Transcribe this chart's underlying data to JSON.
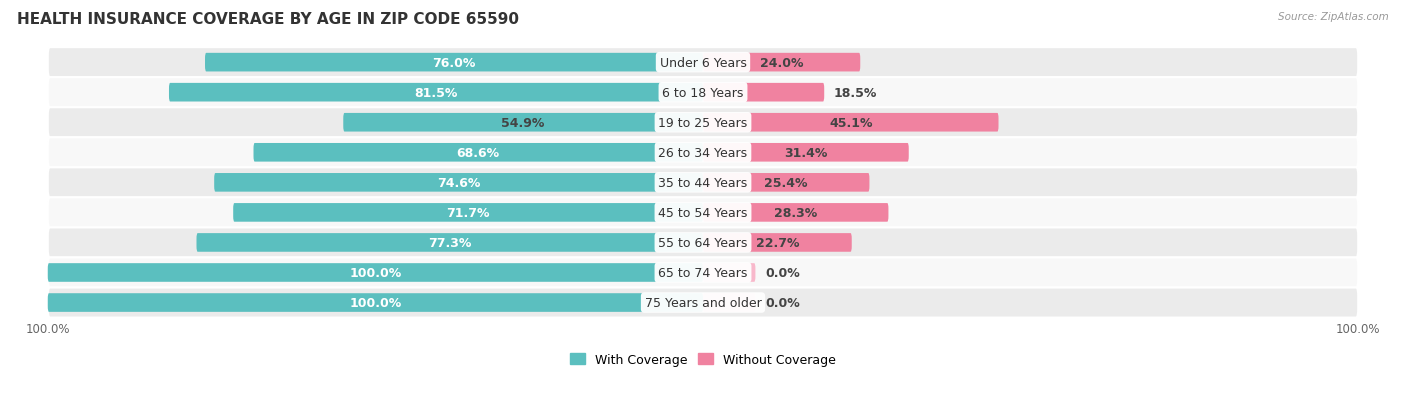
{
  "title": "HEALTH INSURANCE COVERAGE BY AGE IN ZIP CODE 65590",
  "source": "Source: ZipAtlas.com",
  "categories": [
    "Under 6 Years",
    "6 to 18 Years",
    "19 to 25 Years",
    "26 to 34 Years",
    "35 to 44 Years",
    "45 to 54 Years",
    "55 to 64 Years",
    "65 to 74 Years",
    "75 Years and older"
  ],
  "with_coverage": [
    76.0,
    81.5,
    54.9,
    68.6,
    74.6,
    71.7,
    77.3,
    100.0,
    100.0
  ],
  "without_coverage": [
    24.0,
    18.5,
    45.1,
    31.4,
    25.4,
    28.3,
    22.7,
    0.0,
    0.0
  ],
  "color_with": "#5BBFBF",
  "color_without": "#F082A0",
  "color_with_light": "#A8DEDE",
  "color_without_light": "#F8B8CB",
  "color_row_bg_odd": "#EBEBEB",
  "color_row_bg_even": "#F8F8F8",
  "bar_height": 0.62,
  "label_fontsize": 9.0,
  "title_fontsize": 11,
  "axis_label_fontsize": 8.5,
  "cat_fontsize": 9.0,
  "white_text_threshold": 65
}
